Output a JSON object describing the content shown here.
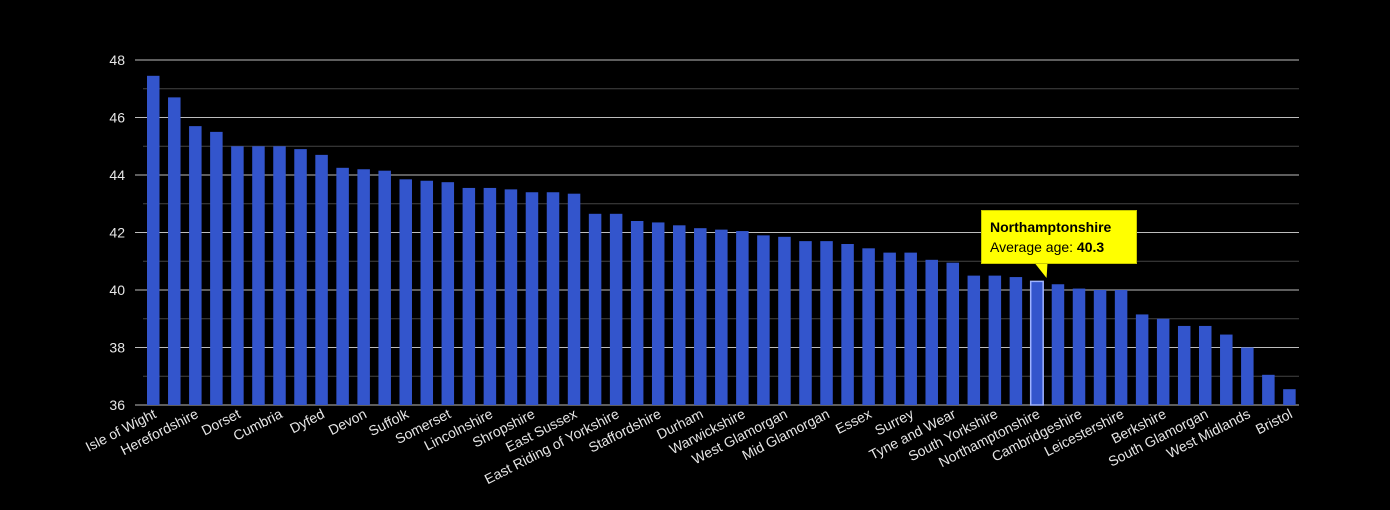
{
  "chart_data": {
    "type": "bar",
    "title": "",
    "xlabel": "",
    "ylabel": "",
    "ylim": [
      36,
      48
    ],
    "yticks": [
      36,
      38,
      40,
      42,
      44,
      46,
      48
    ],
    "grid": true,
    "bar_color": "#3355cc",
    "highlight_color": "#3355cc",
    "categories": [
      "Isle of Wight",
      "",
      "Herefordshire",
      "",
      "Dorset",
      "",
      "Cumbria",
      "",
      "Dyfed",
      "",
      "Devon",
      "",
      "Suffolk",
      "",
      "Somerset",
      "",
      "Lincolnshire",
      "",
      "Shropshire",
      "",
      "East Sussex",
      "",
      "East Riding of Yorkshire",
      "",
      "Staffordshire",
      "",
      "Durham",
      "",
      "Warwickshire",
      "",
      "West Glamorgan",
      "",
      "Mid Glamorgan",
      "",
      "Essex",
      "",
      "Surrey",
      "",
      "Tyne and Wear",
      "",
      "South Yorkshire",
      "",
      "Northamptonshire",
      "",
      "Cambridgeshire",
      "",
      "Leicestershire",
      "",
      "Berkshire",
      "",
      "South Glamorgan",
      "",
      "West Midlands",
      "",
      "Bristol"
    ],
    "values": [
      47.45,
      46.7,
      45.7,
      45.5,
      45.0,
      45.0,
      45.0,
      44.9,
      44.7,
      44.25,
      44.2,
      44.15,
      43.85,
      43.8,
      43.75,
      43.55,
      43.55,
      43.5,
      43.4,
      43.4,
      43.35,
      42.65,
      42.65,
      42.4,
      42.35,
      42.25,
      42.15,
      42.1,
      42.05,
      41.9,
      41.85,
      41.7,
      41.7,
      41.6,
      41.45,
      41.3,
      41.3,
      41.05,
      40.95,
      40.5,
      40.5,
      40.45,
      40.3,
      40.2,
      40.05,
      40.0,
      40.0,
      39.15,
      39.0,
      38.75,
      38.75,
      38.45,
      38.0,
      37.05,
      36.55
    ],
    "highlight_index": 42,
    "tooltip": {
      "name": "Northamptonshire",
      "label": "Average age:",
      "value": "40.3"
    }
  }
}
